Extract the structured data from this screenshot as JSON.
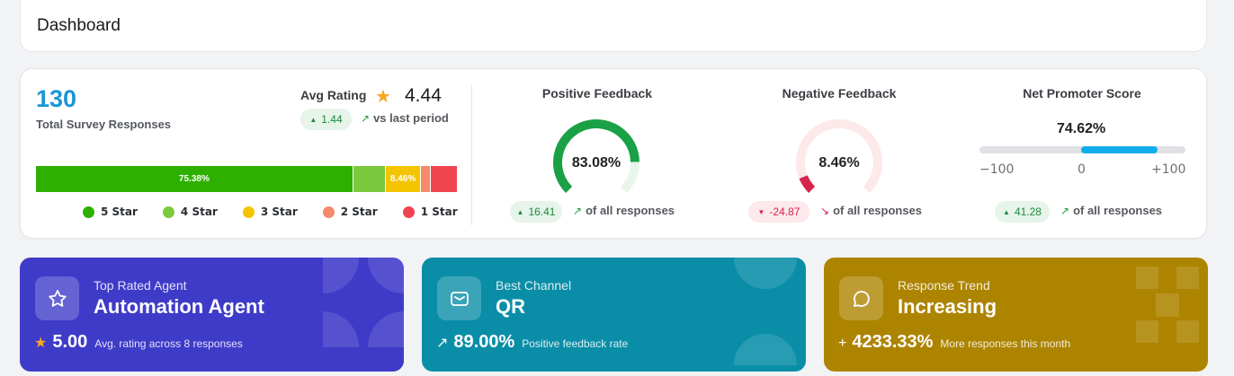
{
  "header": {
    "title": "Dashboard"
  },
  "summary": {
    "total_responses": "130",
    "total_label": "Total Survey Responses",
    "avg_label": "Avg Rating",
    "avg_value": "4.44",
    "avg_change": "1.44",
    "vs_label": "vs last period"
  },
  "rating_bar": {
    "segments": [
      {
        "name": "5 Star",
        "percent": 75.38,
        "label": "75.38%",
        "color": "#2eb000"
      },
      {
        "name": "4 Star",
        "percent": 7.69,
        "label": "",
        "color": "#7bc93d"
      },
      {
        "name": "3 Star",
        "percent": 8.46,
        "label": "8.46%",
        "color": "#f5c400"
      },
      {
        "name": "2 Star",
        "percent": 2.31,
        "label": "",
        "color": "#f5896c"
      },
      {
        "name": "1 Star",
        "percent": 6.15,
        "label": "",
        "color": "#f0444f"
      }
    ],
    "legend": [
      "5 Star",
      "4 Star",
      "3 Star",
      "2 Star",
      "1 Star"
    ]
  },
  "positive": {
    "title": "Positive Feedback",
    "value": "83.08%",
    "fraction": 0.8308,
    "change": "16.41",
    "note": "of all responses",
    "color": "#1aa146",
    "track": "#e8f6ec"
  },
  "negative": {
    "title": "Negative Feedback",
    "value": "8.46%",
    "fraction": 0.0846,
    "change": "-24.87",
    "note": "of all responses",
    "color": "#d6244b",
    "track": "#fde8ea"
  },
  "nps": {
    "title": "Net Promoter Score",
    "value": "74.62%",
    "score": 74.62,
    "min_label": "−100",
    "mid_label": "0",
    "max_label": "+100",
    "change": "41.28",
    "note": "of all responses"
  },
  "cards": [
    {
      "kicker": "Top Rated Agent",
      "headline": "Automation Agent",
      "glyph": "★",
      "stat": "5.00",
      "caption": "Avg. rating across 8 responses",
      "icon": "star-icon",
      "color": "#3f3bc9"
    },
    {
      "kicker": "Best Channel",
      "headline": "QR",
      "glyph": "↗",
      "stat": "89.00%",
      "caption": "Positive feedback rate",
      "icon": "mail-icon",
      "color": "#0a8ea8"
    },
    {
      "kicker": "Response Trend",
      "headline": "Increasing",
      "glyph": "+",
      "stat": "4233.33%",
      "caption": "More responses this month",
      "icon": "chat-bubble-icon",
      "color": "#ad8400"
    }
  ]
}
